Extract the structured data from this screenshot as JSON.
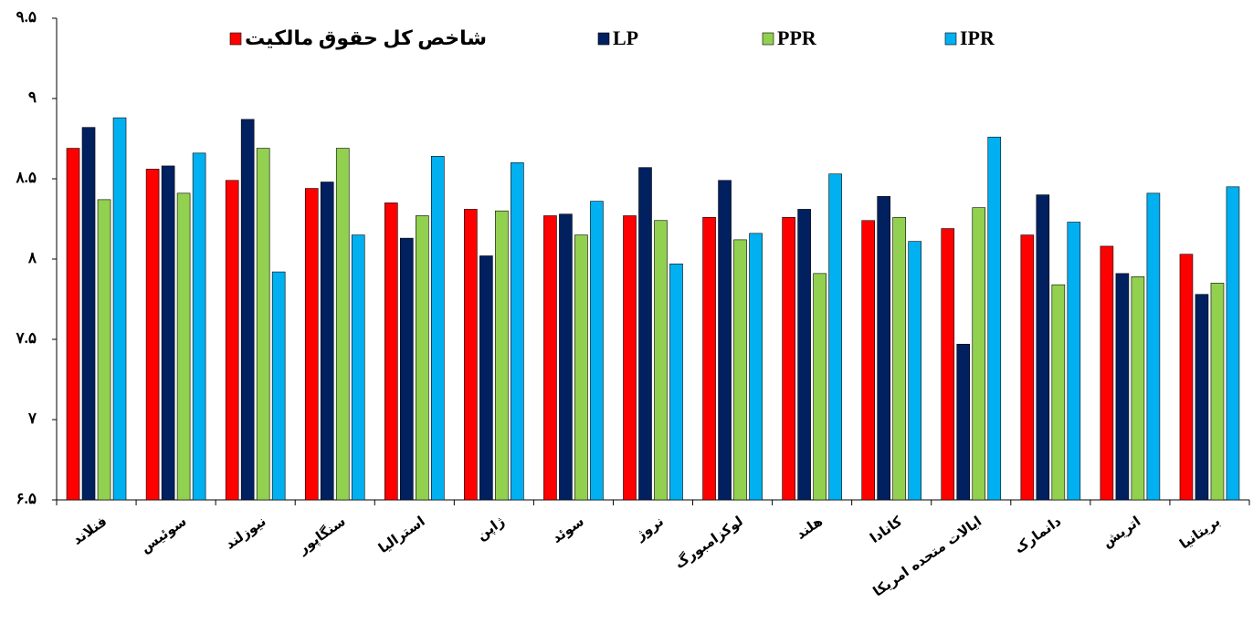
{
  "chart_data": {
    "type": "bar",
    "categories": [
      "فنلاند",
      "سوئیس",
      "نیوزلند",
      "سنگاپور",
      "استرالیا",
      "ژاپن",
      "سوئد",
      "نروژ",
      "لوکزامبورگ",
      "هلند",
      "کانادا",
      "ایالات متحده امریکا",
      "دانمارک",
      "اتریش",
      "بریتانیا"
    ],
    "series": [
      {
        "name": "شاخص کل حقوق مالکیت",
        "color": "#ff0000",
        "values": [
          8.69,
          8.56,
          8.49,
          8.44,
          8.35,
          8.31,
          8.27,
          8.27,
          8.26,
          8.26,
          8.24,
          8.19,
          8.15,
          8.08,
          8.03
        ]
      },
      {
        "name": "LP",
        "color": "#002060",
        "values": [
          8.82,
          8.58,
          8.87,
          8.48,
          8.13,
          8.02,
          8.28,
          8.57,
          8.49,
          8.31,
          8.39,
          7.47,
          8.4,
          7.91,
          7.78
        ]
      },
      {
        "name": "PPR",
        "color": "#92d050",
        "values": [
          8.37,
          8.41,
          8.69,
          8.69,
          8.27,
          8.3,
          8.15,
          8.24,
          8.12,
          7.91,
          8.26,
          8.32,
          7.84,
          7.89,
          7.85
        ]
      },
      {
        "name": "IPR",
        "color": "#00b0f0",
        "values": [
          8.88,
          8.66,
          7.92,
          8.15,
          8.64,
          8.6,
          8.36,
          7.97,
          8.16,
          8.53,
          8.11,
          8.76,
          8.23,
          8.41,
          8.45
        ]
      }
    ],
    "ylim": [
      6.5,
      9.5
    ],
    "yticks": [
      {
        "value": 6.5,
        "label": "۶.۵"
      },
      {
        "value": 7,
        "label": "۷"
      },
      {
        "value": 7.5,
        "label": "۷.۵"
      },
      {
        "value": 8,
        "label": "۸"
      },
      {
        "value": 8.5,
        "label": "۸.۵"
      },
      {
        "value": 9,
        "label": "۹"
      },
      {
        "value": 9.5,
        "label": "۹.۵"
      }
    ],
    "grid": false
  }
}
